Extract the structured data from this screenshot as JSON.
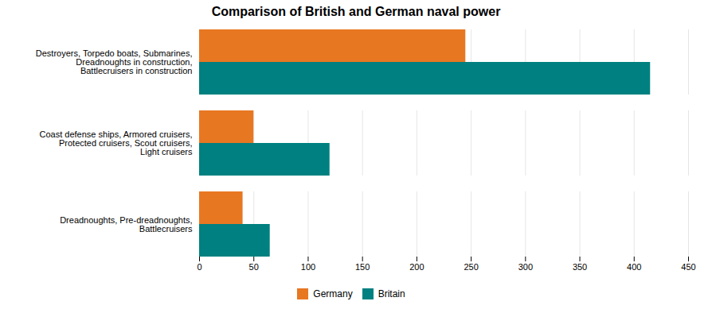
{
  "chart_data": {
    "type": "bar",
    "title": "Comparison of British and German naval power",
    "orientation": "horizontal",
    "categories": [
      "Destroyers, Torpedo boats, Submarines,\nDreadnoughts in construction,\nBattlecruisers in construction",
      "Coast defense ships, Armored cruisers,\nProtected cruisers, Scout cruisers,\nLight cruisers",
      "Dreadnoughts, Pre-dreadnoughts,\nBattlecruisers"
    ],
    "series": [
      {
        "name": "Germany",
        "color": "#E87722",
        "values": [
          245,
          50,
          40
        ]
      },
      {
        "name": "Britain",
        "color": "#008080",
        "values": [
          415,
          120,
          65
        ]
      }
    ],
    "xlim": [
      0,
      450
    ],
    "xticks": [
      0,
      50,
      100,
      150,
      200,
      250,
      300,
      350,
      400,
      450
    ],
    "grid": true,
    "legend": "bottom"
  }
}
